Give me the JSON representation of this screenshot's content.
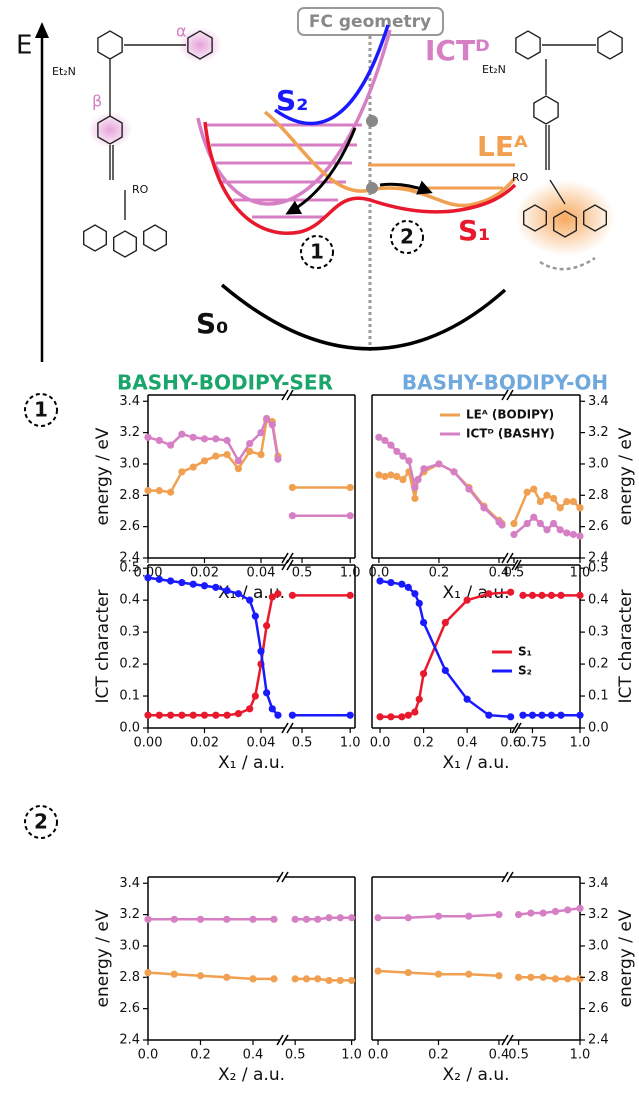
{
  "figure": {
    "energy_axis": "E",
    "fc_label": "FC geometry",
    "states": [
      "ICTᴰ",
      "S₂",
      "LEᴬ",
      "S₁",
      "S₀"
    ],
    "pathways": [
      "1",
      "2"
    ],
    "molecule_labels": [
      "Et₂N",
      "RO",
      "α",
      "β",
      "Et₂N",
      "RO"
    ],
    "columns": [
      "BASHY-BODIPY-SER",
      "BASHY-BODIPY-OH"
    ],
    "rows": [
      "1",
      "2"
    ]
  },
  "chart_data": [
    {
      "type": "line",
      "ylabel": "energy / eV",
      "xlabel": "X₁ / a.u.",
      "ylim": [
        2.4,
        3.44
      ],
      "yticks": [
        2.4,
        2.6,
        2.8,
        {
          "value": 3,
          "label": "3.0"
        },
        3.2,
        3.4
      ],
      "parts": [
        {
          "xlim": [
            0,
            0.0485
          ],
          "xticks": [
            {
              "value": 0,
              "label": "0.00"
            },
            0.02,
            0.04
          ],
          "x": [
            0,
            0.004,
            0.008,
            0.012,
            0.016,
            0.02,
            0.024,
            0.028,
            0.032,
            0.036,
            0.04,
            0.042,
            0.044,
            0.046
          ],
          "series": [
            {
              "color": "#f0a050",
              "values": [
                2.83,
                2.83,
                2.82,
                2.95,
                2.98,
                3.02,
                3.05,
                3.06,
                2.97,
                3.08,
                3.06,
                3.28,
                3.27,
                3.05
              ]
            },
            {
              "color": "#d67fc4",
              "values": [
                3.17,
                3.15,
                3.12,
                3.19,
                3.17,
                3.16,
                3.16,
                3.15,
                3.02,
                3.13,
                3.2,
                3.29,
                3.25,
                3.03
              ]
            }
          ]
        },
        {
          "xlim": [
            0.375,
            1.05
          ],
          "xticks": [
            0.5,
            {
              "value": 1,
              "label": "1.0"
            }
          ],
          "x": [
            0.4,
            1.0
          ],
          "series": [
            {
              "color": "#f0a050",
              "values": [
                2.85,
                2.85
              ]
            },
            {
              "color": "#d67fc4",
              "values": [
                2.67,
                2.67
              ]
            }
          ]
        }
      ]
    },
    {
      "type": "line",
      "ylabel": "energy / eV",
      "xlabel": "X₁ / a.u.",
      "ylim": [
        2.4,
        3.44
      ],
      "yticks": [
        2.4,
        2.6,
        2.8,
        {
          "value": 3,
          "label": "3.0"
        },
        3.2,
        3.4
      ],
      "parts": [
        {
          "xlim": [
            -0.023,
            0.42
          ],
          "xticks": [
            {
              "value": 0,
              "label": "0.0"
            },
            0.2,
            0.4
          ],
          "x": [
            0,
            0.02,
            0.04,
            0.06,
            0.08,
            0.1,
            0.12,
            0.13,
            0.15,
            0.2,
            0.25,
            0.3,
            0.35,
            0.4,
            0.41
          ],
          "series": [
            {
              "name": "LEᴬ (BODIPY)",
              "color": "#f0a050",
              "values": [
                2.93,
                2.92,
                2.93,
                2.92,
                2.9,
                2.95,
                2.78,
                2.9,
                2.95,
                3.0,
                2.95,
                2.85,
                2.73,
                2.64,
                2.62
              ]
            },
            {
              "name": "ICTᴰ (BASHY)",
              "color": "#d67fc4",
              "values": [
                3.17,
                3.15,
                3.12,
                3.08,
                3.05,
                3.02,
                2.85,
                2.9,
                2.97,
                3.0,
                2.95,
                2.84,
                2.72,
                2.63,
                2.61
              ]
            }
          ]
        },
        {
          "xlim": [
            0.47,
            1.0
          ],
          "xticks": [
            0.5,
            {
              "value": 1,
              "label": "1.0"
            }
          ],
          "x": [
            0.5,
            0.6,
            0.65,
            0.7,
            0.75,
            0.8,
            0.85,
            0.9,
            0.95,
            1.0
          ],
          "series": [
            {
              "color": "#f0a050",
              "values": [
                2.62,
                2.82,
                2.84,
                2.76,
                2.8,
                2.78,
                2.72,
                2.76,
                2.76,
                2.72
              ]
            },
            {
              "color": "#d67fc4",
              "values": [
                2.55,
                2.62,
                2.66,
                2.62,
                2.58,
                2.62,
                2.58,
                2.56,
                2.55,
                2.54
              ]
            }
          ]
        }
      ]
    },
    {
      "type": "line",
      "ylabel": "ICT character",
      "xlabel": "X₁ / a.u.",
      "ylim": [
        0,
        0.51
      ],
      "yticks": [
        {
          "value": 0,
          "label": "0.0"
        },
        0.1,
        0.2,
        0.3,
        0.4,
        0.5
      ],
      "parts": [
        {
          "xlim": [
            0,
            0.0485
          ],
          "xticks": [
            {
              "value": 0,
              "label": "0.00"
            },
            0.02,
            0.04
          ],
          "x": [
            0,
            0.004,
            0.008,
            0.012,
            0.016,
            0.02,
            0.024,
            0.028,
            0.032,
            0.036,
            0.038,
            0.04,
            0.042,
            0.044,
            0.046
          ],
          "series": [
            {
              "color": "#e8192c",
              "values": [
                0.04,
                0.04,
                0.04,
                0.04,
                0.04,
                0.04,
                0.04,
                0.04,
                0.045,
                0.06,
                0.1,
                0.2,
                0.32,
                0.41,
                0.42
              ]
            },
            {
              "color": "#1a1aff",
              "values": [
                0.47,
                0.465,
                0.46,
                0.455,
                0.45,
                0.445,
                0.44,
                0.43,
                0.42,
                0.4,
                0.35,
                0.24,
                0.11,
                0.06,
                0.04
              ]
            }
          ]
        },
        {
          "xlim": [
            0.375,
            1.05
          ],
          "xticks": [
            0.5,
            {
              "value": 1,
              "label": "1.0"
            }
          ],
          "x": [
            0.4,
            1.0
          ],
          "series": [
            {
              "color": "#e8192c",
              "values": [
                0.415,
                0.415
              ]
            },
            {
              "color": "#1a1aff",
              "values": [
                0.04,
                0.04
              ]
            }
          ]
        }
      ]
    },
    {
      "type": "line",
      "ylabel": "ICT character",
      "xlabel": "X₁ / a.u.",
      "ylim": [
        0,
        0.51
      ],
      "yticks": [
        {
          "value": 0,
          "label": "0.0"
        },
        0.1,
        0.2,
        0.3,
        0.4,
        0.5
      ],
      "parts": [
        {
          "xlim": [
            -0.037,
            0.62
          ],
          "xticks": [
            {
              "value": 0,
              "label": "0.0"
            },
            0.2,
            0.4,
            0.6
          ],
          "x": [
            0,
            0.05,
            0.1,
            0.13,
            0.16,
            0.18,
            0.2,
            0.3,
            0.4,
            0.5,
            0.6
          ],
          "series": [
            {
              "name": "S₁",
              "color": "#e8192c",
              "values": [
                0.035,
                0.035,
                0.035,
                0.04,
                0.05,
                0.09,
                0.17,
                0.33,
                0.4,
                0.42,
                0.425
              ]
            },
            {
              "name": "S₂",
              "color": "#1a1aff",
              "values": [
                0.46,
                0.455,
                0.45,
                0.44,
                0.42,
                0.39,
                0.33,
                0.18,
                0.09,
                0.04,
                0.035
              ]
            }
          ]
        },
        {
          "xlim": [
            0.674,
            1.0
          ],
          "xticks": [
            0.75,
            {
              "value": 1,
              "label": "1.0"
            }
          ],
          "x": [
            0.7,
            0.75,
            0.8,
            0.85,
            0.9,
            1.0
          ],
          "series": [
            {
              "color": "#e8192c",
              "values": [
                0.415,
                0.415,
                0.415,
                0.415,
                0.415,
                0.415
              ]
            },
            {
              "color": "#1a1aff",
              "values": [
                0.04,
                0.04,
                0.04,
                0.04,
                0.04,
                0.04
              ]
            }
          ]
        }
      ]
    },
    {
      "type": "line",
      "ylabel": "energy / eV",
      "xlabel": "X₂ / a.u.",
      "ylim": [
        2.4,
        3.44
      ],
      "yticks": [
        2.4,
        2.6,
        2.8,
        {
          "value": 3,
          "label": "3.0"
        },
        3.2,
        3.4
      ],
      "parts": [
        {
          "xlim": [
            0,
            0.503
          ],
          "xticks": [
            {
              "value": 0,
              "label": "0.0"
            },
            0.2,
            0.4
          ],
          "x": [
            0,
            0.1,
            0.2,
            0.3,
            0.4,
            0.48
          ],
          "series": [
            {
              "color": "#f0a050",
              "values": [
                2.83,
                2.82,
                2.81,
                2.8,
                2.79,
                2.79
              ]
            },
            {
              "color": "#d67fc4",
              "values": [
                3.17,
                3.17,
                3.17,
                3.17,
                3.17,
                3.17
              ]
            }
          ]
        },
        {
          "xlim": [
            0.41,
            1.03
          ],
          "xticks": [
            0.5,
            {
              "value": 1,
              "label": "1.0"
            }
          ],
          "x": [
            0.5,
            0.6,
            0.7,
            0.8,
            0.9,
            1.0
          ],
          "series": [
            {
              "color": "#f0a050",
              "values": [
                2.79,
                2.79,
                2.79,
                2.78,
                2.78,
                2.78
              ]
            },
            {
              "color": "#d67fc4",
              "values": [
                3.17,
                3.17,
                3.17,
                3.18,
                3.18,
                3.18
              ]
            }
          ]
        }
      ]
    },
    {
      "type": "line",
      "ylabel": "energy / eV",
      "xlabel": "X₂ / a.u.",
      "ylim": [
        2.4,
        3.44
      ],
      "yticks": [
        2.4,
        2.6,
        2.8,
        {
          "value": 3,
          "label": "3.0"
        },
        3.2,
        3.4
      ],
      "parts": [
        {
          "xlim": [
            -0.02,
            0.42
          ],
          "xticks": [
            {
              "value": 0,
              "label": "0.0"
            },
            0.2,
            0.4
          ],
          "x": [
            0,
            0.1,
            0.2,
            0.3,
            0.4
          ],
          "series": [
            {
              "color": "#f0a050",
              "values": [
                2.84,
                2.83,
                2.82,
                2.82,
                2.81
              ]
            },
            {
              "color": "#d67fc4",
              "values": [
                3.18,
                3.18,
                3.19,
                3.19,
                3.2
              ]
            }
          ]
        },
        {
          "xlim": [
            0.43,
            1.0
          ],
          "xticks": [
            0.5,
            {
              "value": 1,
              "label": "1.0"
            }
          ],
          "x": [
            0.5,
            0.6,
            0.7,
            0.8,
            0.9,
            1.0
          ],
          "series": [
            {
              "color": "#f0a050",
              "values": [
                2.8,
                2.8,
                2.8,
                2.79,
                2.79,
                2.79
              ]
            },
            {
              "color": "#d67fc4",
              "values": [
                3.2,
                3.21,
                3.21,
                3.22,
                3.23,
                3.24
              ]
            }
          ]
        }
      ]
    }
  ]
}
